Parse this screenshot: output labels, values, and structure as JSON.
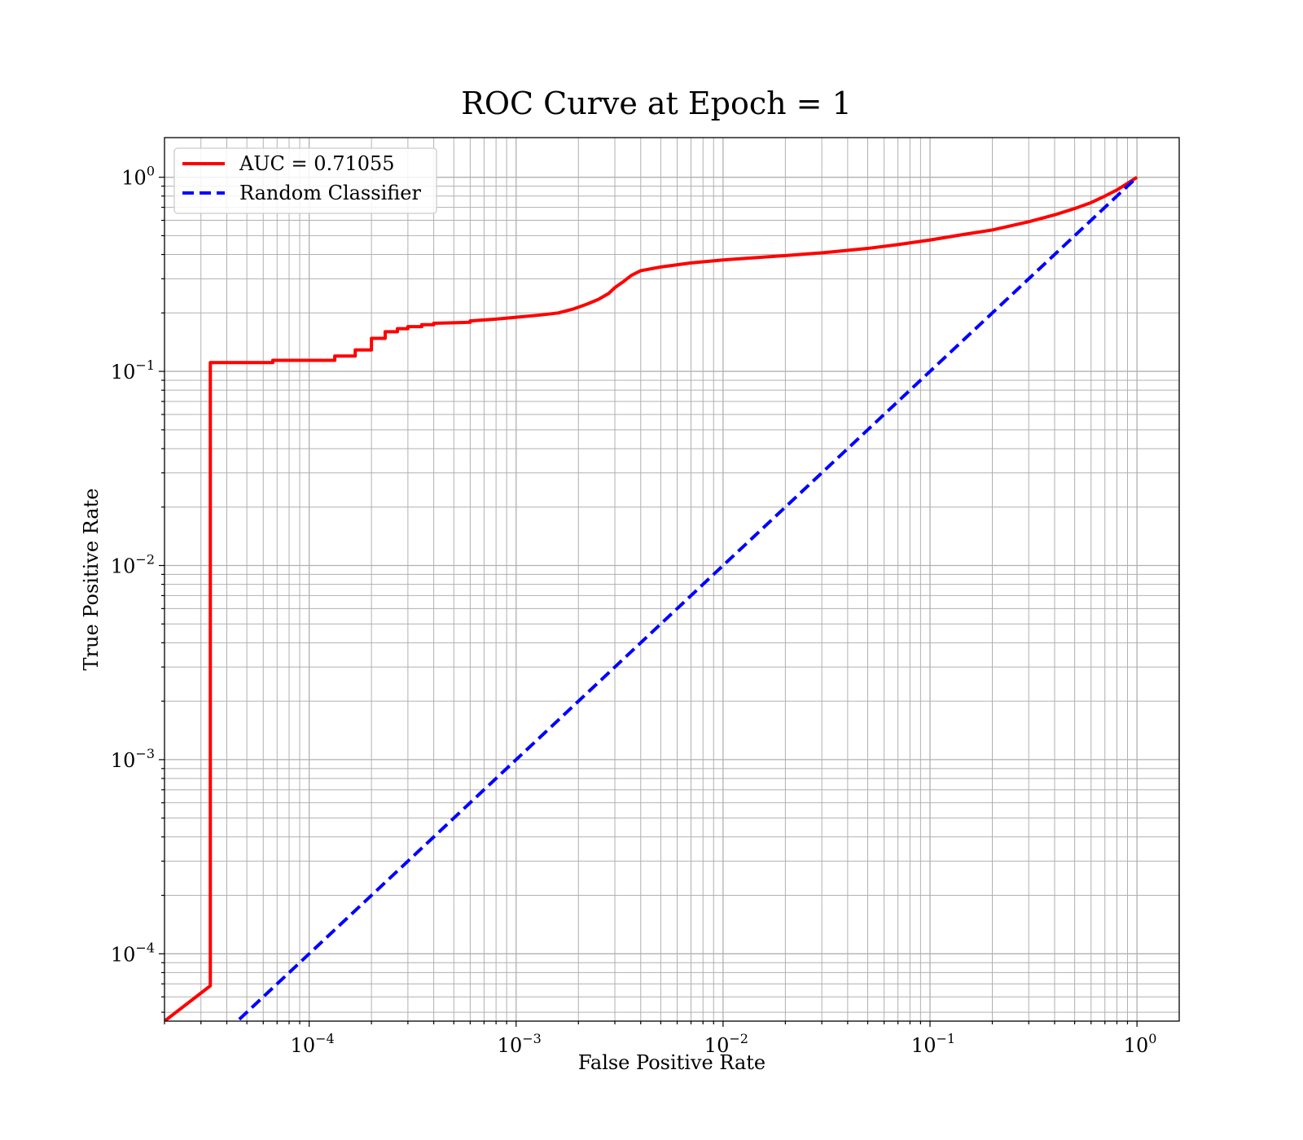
{
  "chart_data": {
    "type": "line",
    "title": "ROC Curve at Epoch = 1",
    "xlabel": "False Positive Rate",
    "ylabel": "True Positive Rate",
    "xscale": "log",
    "yscale": "log",
    "xlim": [
      2e-05,
      1.6
    ],
    "ylim": [
      4.5e-05,
      1.6
    ],
    "grid": {
      "major": true,
      "minor": true
    },
    "legend": "upper-left",
    "x_ticks": [
      {
        "value": 0.0001,
        "base": "10",
        "exp": "−4"
      },
      {
        "value": 0.001,
        "base": "10",
        "exp": "−3"
      },
      {
        "value": 0.01,
        "base": "10",
        "exp": "−2"
      },
      {
        "value": 0.1,
        "base": "10",
        "exp": "−1"
      },
      {
        "value": 1,
        "base": "10",
        "exp": "0"
      }
    ],
    "y_ticks": [
      {
        "value": 0.0001,
        "base": "10",
        "exp": "−4"
      },
      {
        "value": 0.001,
        "base": "10",
        "exp": "−3"
      },
      {
        "value": 0.01,
        "base": "10",
        "exp": "−2"
      },
      {
        "value": 0.1,
        "base": "10",
        "exp": "−1"
      },
      {
        "value": 1,
        "base": "10",
        "exp": "0"
      }
    ],
    "series": [
      {
        "name": "AUC = 0.71055",
        "color": "#ff0000",
        "style": "solid",
        "points": [
          [
            2e-05,
            4.5e-05
          ],
          [
            3.33e-05,
            6.84e-05
          ],
          [
            3.33e-05,
            0.111
          ],
          [
            6.67e-05,
            0.111
          ],
          [
            6.67e-05,
            0.114
          ],
          [
            0.000133,
            0.114
          ],
          [
            0.000133,
            0.12
          ],
          [
            0.000167,
            0.12
          ],
          [
            0.000167,
            0.129
          ],
          [
            0.0002,
            0.129
          ],
          [
            0.0002,
            0.148
          ],
          [
            0.000233,
            0.148
          ],
          [
            0.000233,
            0.16
          ],
          [
            0.000267,
            0.16
          ],
          [
            0.000267,
            0.166
          ],
          [
            0.0003,
            0.166
          ],
          [
            0.0003,
            0.17
          ],
          [
            0.00035,
            0.17
          ],
          [
            0.00035,
            0.174
          ],
          [
            0.0004,
            0.174
          ],
          [
            0.0004,
            0.177
          ],
          [
            0.0005,
            0.178
          ],
          [
            0.0006,
            0.179
          ],
          [
            0.0006,
            0.182
          ],
          [
            0.0008,
            0.186
          ],
          [
            0.001,
            0.19
          ],
          [
            0.0013,
            0.195
          ],
          [
            0.0016,
            0.2
          ],
          [
            0.0019,
            0.21
          ],
          [
            0.0022,
            0.222
          ],
          [
            0.0025,
            0.235
          ],
          [
            0.0028,
            0.252
          ],
          [
            0.003,
            0.27
          ],
          [
            0.0033,
            0.29
          ],
          [
            0.0036,
            0.312
          ],
          [
            0.004,
            0.33
          ],
          [
            0.005,
            0.345
          ],
          [
            0.007,
            0.362
          ],
          [
            0.01,
            0.375
          ],
          [
            0.02,
            0.395
          ],
          [
            0.03,
            0.408
          ],
          [
            0.05,
            0.43
          ],
          [
            0.07,
            0.45
          ],
          [
            0.1,
            0.475
          ],
          [
            0.15,
            0.51
          ],
          [
            0.2,
            0.535
          ],
          [
            0.3,
            0.59
          ],
          [
            0.4,
            0.64
          ],
          [
            0.5,
            0.69
          ],
          [
            0.6,
            0.74
          ],
          [
            0.7,
            0.8
          ],
          [
            0.8,
            0.86
          ],
          [
            0.9,
            0.93
          ],
          [
            1.0,
            1.0
          ]
        ]
      },
      {
        "name": "Random Classifier",
        "color": "#0000ff",
        "style": "dashed",
        "points": [
          [
            4e-05,
            4e-05
          ],
          [
            1.0,
            1.0
          ]
        ]
      }
    ]
  }
}
